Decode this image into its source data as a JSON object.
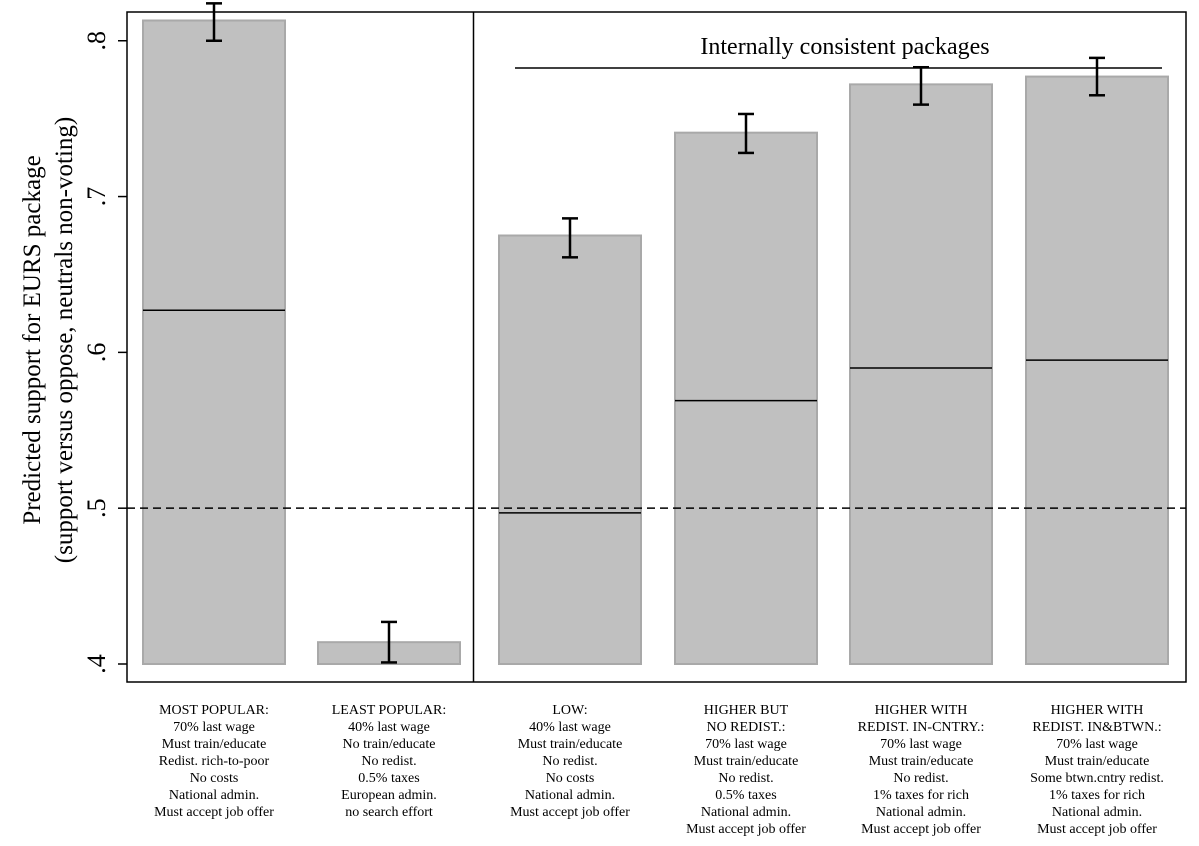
{
  "chart_data": {
    "type": "bar",
    "ylabel_line1": "Predicted support for EURS package",
    "ylabel_line2": "(support versus oppose, neutrals non-voting)",
    "ylim": [
      0.4,
      0.83
    ],
    "yticks": [
      {
        "value": 0.4,
        "label": ".4"
      },
      {
        "value": 0.5,
        "label": ".5"
      },
      {
        "value": 0.6,
        "label": ".6"
      },
      {
        "value": 0.7,
        "label": ".7"
      },
      {
        "value": 0.8,
        "label": ".8"
      }
    ],
    "reference_line": 0.5,
    "bar_color": "#c0c0c0",
    "bar_edge_color": "#a9a9a9",
    "panel_title": "Internally consistent packages",
    "panel_divider_after_index": 1,
    "categories": [
      {
        "lines": [
          "MOST POPULAR:",
          "70% last wage",
          "Must train/educate",
          "Redist. rich-to-poor",
          "No costs",
          "National admin.",
          "Must accept job offer"
        ],
        "value": 0.813,
        "ci_low": 0.8,
        "ci_high": 0.824,
        "inner_line": 0.627
      },
      {
        "lines": [
          "LEAST POPULAR:",
          "40% last wage",
          "No train/educate",
          "No redist.",
          "0.5% taxes",
          "European admin.",
          "no search effort"
        ],
        "value": 0.414,
        "ci_low": 0.401,
        "ci_high": 0.427,
        "inner_line": null
      },
      {
        "lines": [
          "LOW:",
          "40% last wage",
          "Must train/educate",
          "No redist.",
          "No costs",
          "National admin.",
          "Must accept job offer"
        ],
        "value": 0.675,
        "ci_low": 0.661,
        "ci_high": 0.686,
        "inner_line": 0.497
      },
      {
        "lines": [
          "HIGHER BUT",
          "NO REDIST.:",
          "70% last wage",
          "Must train/educate",
          "No redist.",
          "0.5% taxes",
          "National admin.",
          "Must accept job offer"
        ],
        "value": 0.741,
        "ci_low": 0.728,
        "ci_high": 0.753,
        "inner_line": 0.569
      },
      {
        "lines": [
          "HIGHER WITH",
          "REDIST. IN-CNTRY.:",
          "70% last wage",
          "Must train/educate",
          "No redist.",
          "1% taxes for rich",
          "National admin.",
          "Must accept job offer"
        ],
        "value": 0.772,
        "ci_low": 0.759,
        "ci_high": 0.783,
        "inner_line": 0.59
      },
      {
        "lines": [
          "HIGHER WITH",
          "REDIST. IN&BTWN.:",
          "70% last wage",
          "Must train/educate",
          "Some btwn.cntry redist.",
          "1% taxes for rich",
          "National admin.",
          "Must accept job offer"
        ],
        "value": 0.777,
        "ci_low": 0.765,
        "ci_high": 0.789,
        "inner_line": 0.595
      }
    ]
  }
}
